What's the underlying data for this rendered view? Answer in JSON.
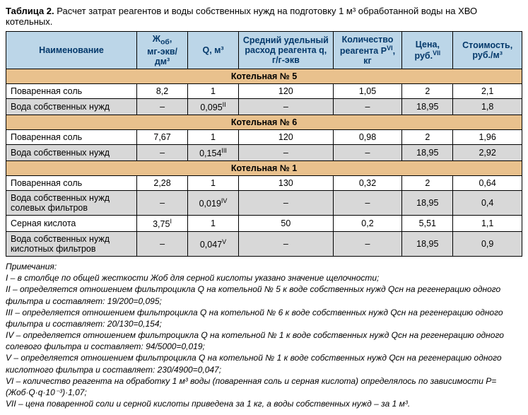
{
  "title_prefix": "Таблица 2.",
  "title_rest": " Расчет затрат реагентов и воды собственных нужд на подготовку 1 м³ обработанной воды на ХВО котельных.",
  "columns": {
    "c1": "Наименование",
    "c2_main": "Ж",
    "c2_sub": "об",
    "c2_unit": "мг-экв/дм³",
    "c3": "Q, м³",
    "c4": "Средний удельный расход реагента q, г/г-экв",
    "c5_main": "Количество реагента Р",
    "c5_sup": "VI",
    "c5_unit": ", кг",
    "c6_main": "Цена, руб.",
    "c6_sup": "VII",
    "c7": "Стоимость, руб./м³"
  },
  "sections": [
    {
      "header": "Котельная № 5",
      "rows": [
        {
          "alt": false,
          "cells": [
            "Поваренная соль",
            "8,2",
            "1",
            "120",
            "1,05",
            "2",
            "2,1"
          ],
          "qsup": ""
        },
        {
          "alt": true,
          "cells": [
            "Вода собственных нужд",
            "–",
            "0,095",
            "–",
            "–",
            "18,95",
            "1,8"
          ],
          "qsup": "II"
        }
      ]
    },
    {
      "header": "Котельная № 6",
      "rows": [
        {
          "alt": false,
          "cells": [
            "Поваренная соль",
            "7,67",
            "1",
            "120",
            "0,98",
            "2",
            "1,96"
          ],
          "qsup": ""
        },
        {
          "alt": true,
          "cells": [
            "Вода собственных нужд",
            "–",
            "0,154",
            "–",
            "–",
            "18,95",
            "2,92"
          ],
          "qsup": "III"
        }
      ]
    },
    {
      "header": "Котельная № 1",
      "rows": [
        {
          "alt": false,
          "cells": [
            "Поваренная соль",
            "2,28",
            "1",
            "130",
            "0,32",
            "2",
            "0,64"
          ],
          "qsup": ""
        },
        {
          "alt": true,
          "cells": [
            "Вода собственных нужд солевых фильтров",
            "–",
            "0,019",
            "–",
            "–",
            "18,95",
            "0,4"
          ],
          "qsup": "IV"
        },
        {
          "alt": false,
          "cells": [
            "Серная кислота",
            "3,75",
            "1",
            "50",
            "0,2",
            "5,51",
            "1,1"
          ],
          "c2sup": "I"
        },
        {
          "alt": true,
          "cells": [
            "Вода собственных нужд кислотных фильтров",
            "–",
            "0,047",
            "–",
            "–",
            "18,95",
            "0,9"
          ],
          "qsup": "V"
        }
      ]
    }
  ],
  "notes": [
    "Примечания:",
    "I – в столбце по общей жесткости Жоб для серной кислоты указано значение щелочности;",
    "II – определяется отношением фильтроцикла Q на котельной № 5 к воде собственных нужд Qсн на регенерацию одного фильтра и составляет: 19/200=0,095;",
    "III – определяется отношением фильтроцикла Q на котельной № 6 к воде собственных нужд Qсн на регенерацию одного фильтра и составляет: 20/130=0,154;",
    "IV – определяется отношением фильтроцикла Q на котельной № 1 к воде собственных нужд Qсн на регенерацию одного солевого фильтра и составляет: 94/5000=0,019;",
    "V – определяется отношением фильтроцикла Q на котельной № 1 к воде собственных нужд Qсн на регенерацию одного кислотного фильтра и составляет: 230/4900=0,047;",
    "VI – количество реагента на обработку 1 м³ воды (поваренная соль и серная кислота) определялось по зависимости Р=(Жоб·Q·q·10⁻³)·1,07;",
    "VII – цена поваренной соли и серной кислоты приведена за 1 кг, а воды собственных нужд – за 1 м³."
  ],
  "col_widths": [
    "180",
    "70",
    "70",
    "130",
    "95",
    "70",
    "95"
  ]
}
